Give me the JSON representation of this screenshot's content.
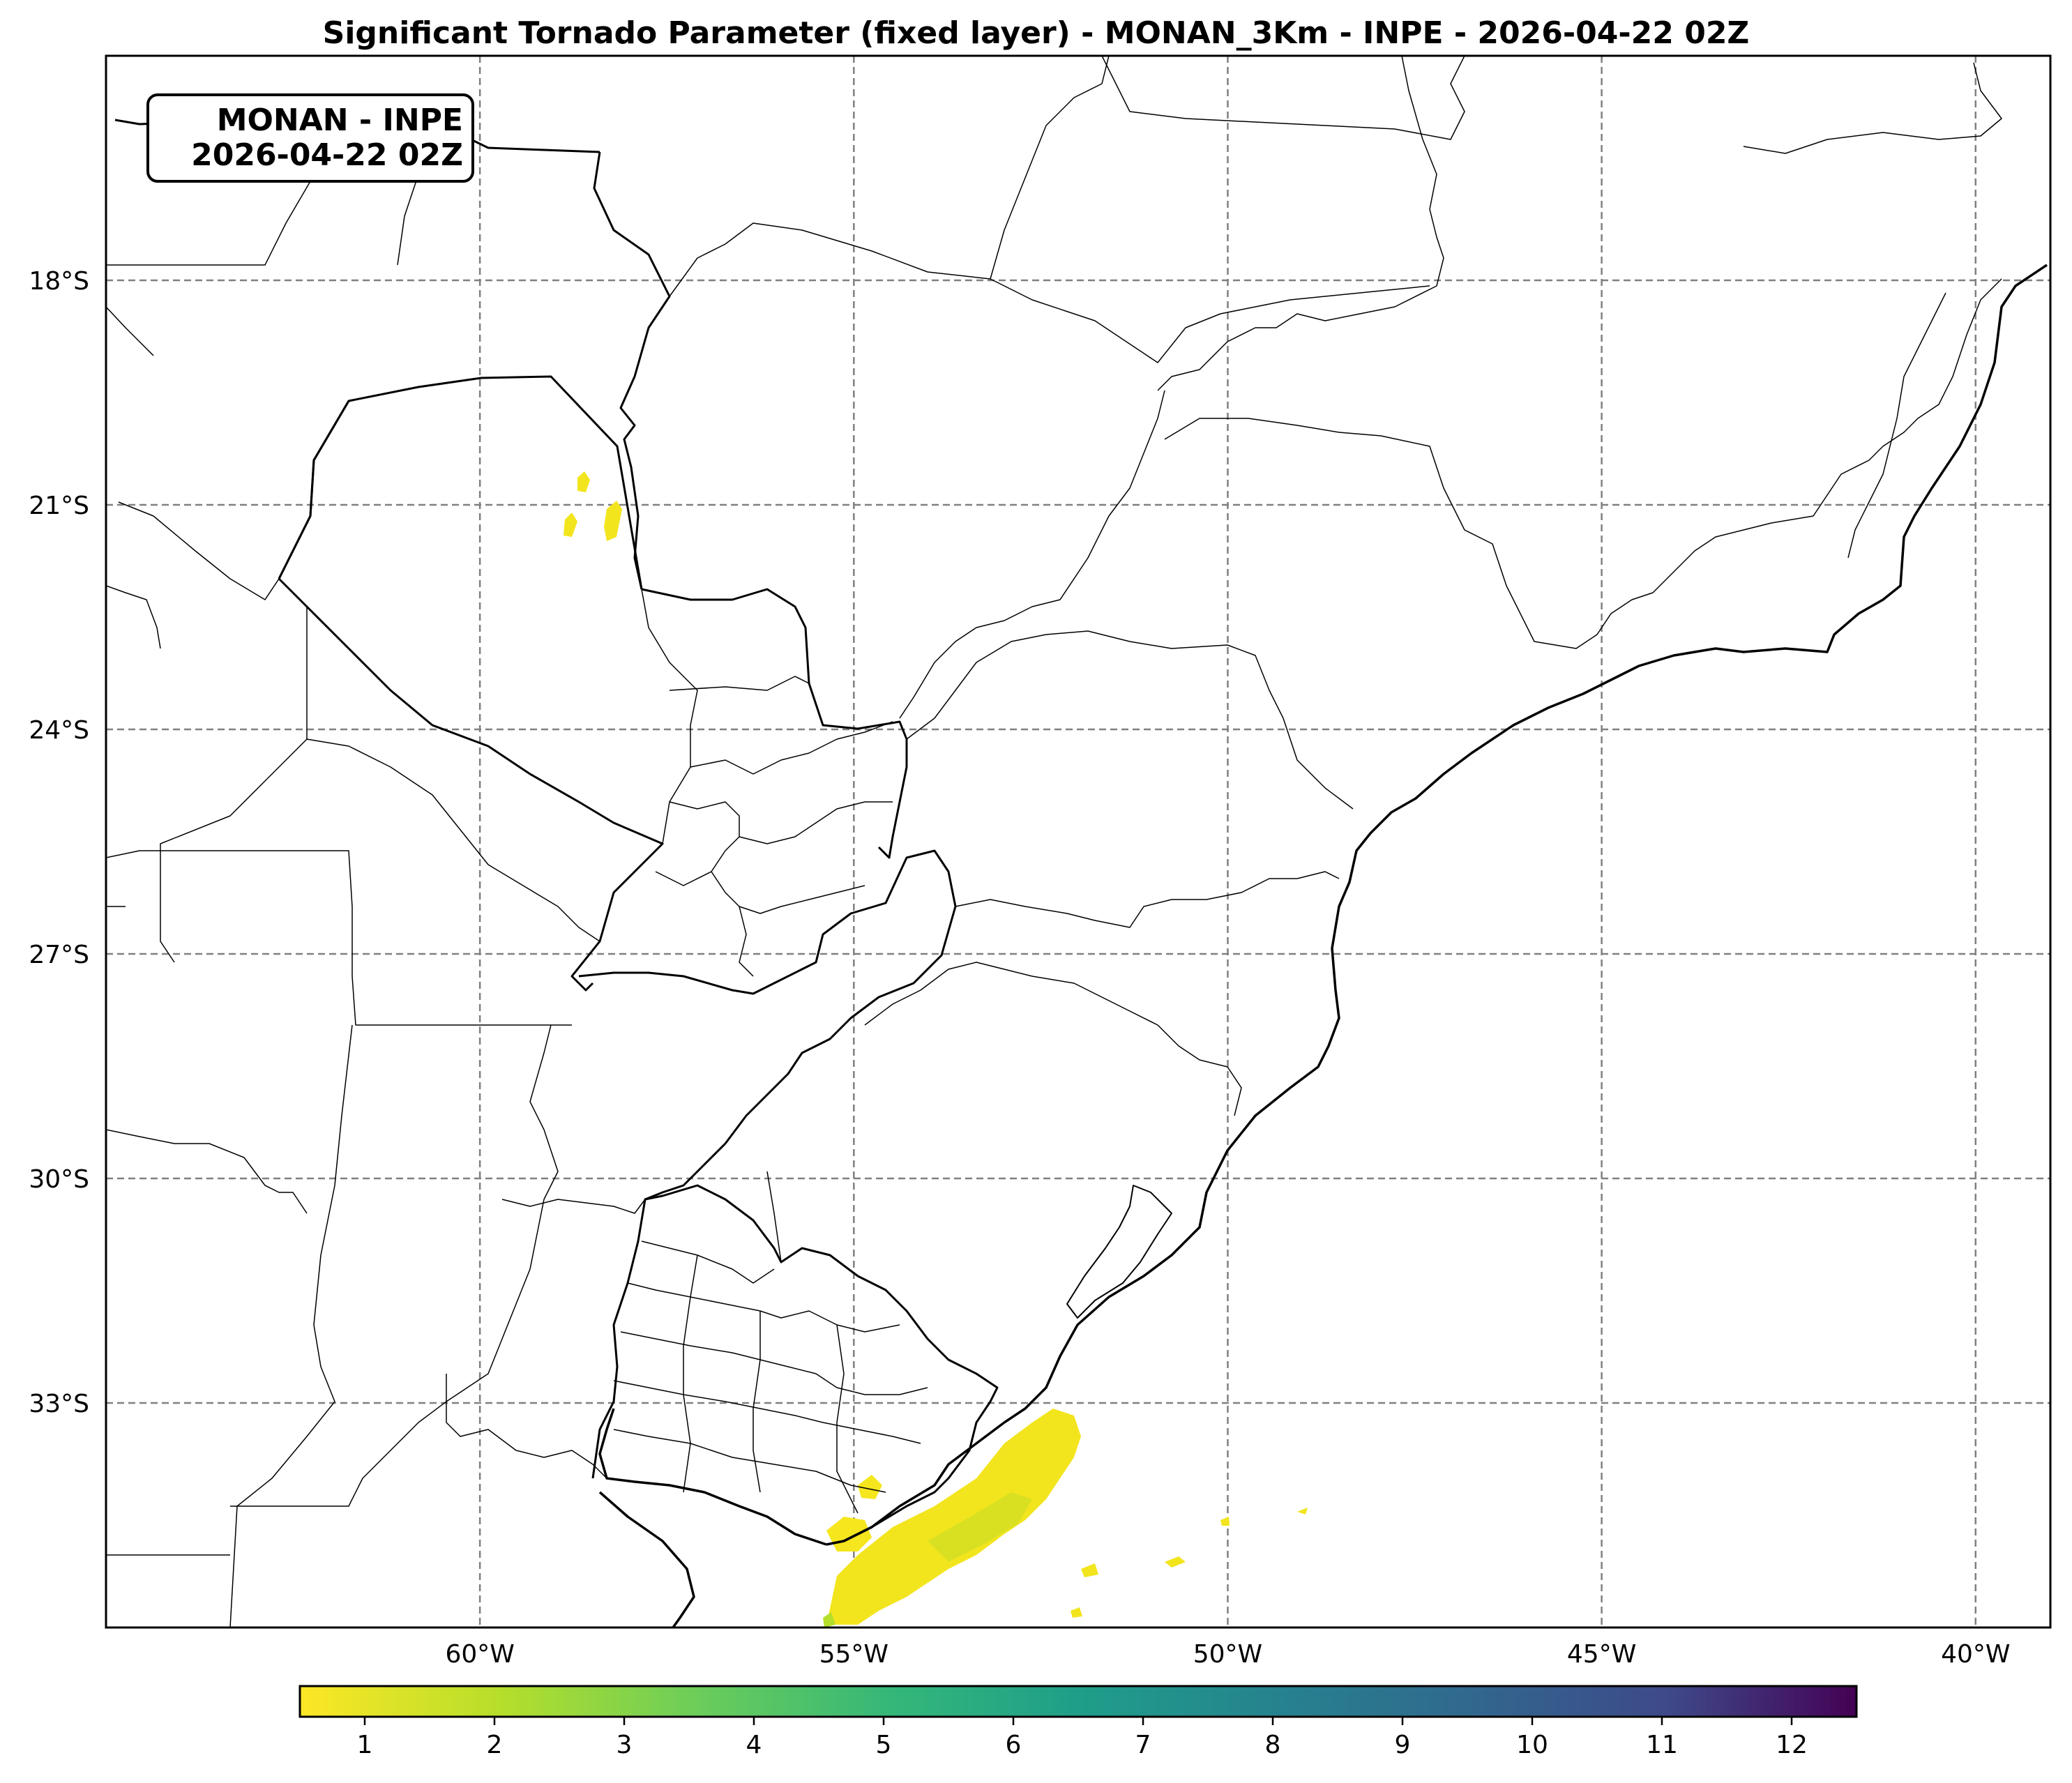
{
  "title": "Significant Tornado Parameter (fixed layer) - MONAN_3Km - INPE - 2026-04-22 02Z",
  "info_box": {
    "line1": "MONAN - INPE",
    "line2": "2026-04-22 02Z"
  },
  "map": {
    "lon_range": [
      -65,
      -39
    ],
    "lat_range": [
      -36,
      -15
    ],
    "gridlines": true,
    "gridline_style": "dashed",
    "lat_ticks": [
      {
        "value": -18,
        "label": "18°S"
      },
      {
        "value": -21,
        "label": "21°S"
      },
      {
        "value": -24,
        "label": "24°S"
      },
      {
        "value": -27,
        "label": "27°S"
      },
      {
        "value": -30,
        "label": "30°S"
      },
      {
        "value": -33,
        "label": "33°S"
      }
    ],
    "lon_ticks": [
      {
        "value": -60,
        "label": "60°W"
      },
      {
        "value": -55,
        "label": "55°W"
      },
      {
        "value": -50,
        "label": "50°W"
      },
      {
        "value": -45,
        "label": "45°W"
      },
      {
        "value": -40,
        "label": "40°W"
      }
    ]
  },
  "colorbar": {
    "colormap": "viridis (reversed)",
    "range": [
      0.5,
      12.5
    ],
    "ticks": [
      "1",
      "2",
      "3",
      "4",
      "5",
      "6",
      "7",
      "8",
      "9",
      "10",
      "11",
      "12"
    ]
  },
  "colors": {
    "low_value": "#fde725",
    "high_value": "#440154",
    "grid": "#808080"
  }
}
